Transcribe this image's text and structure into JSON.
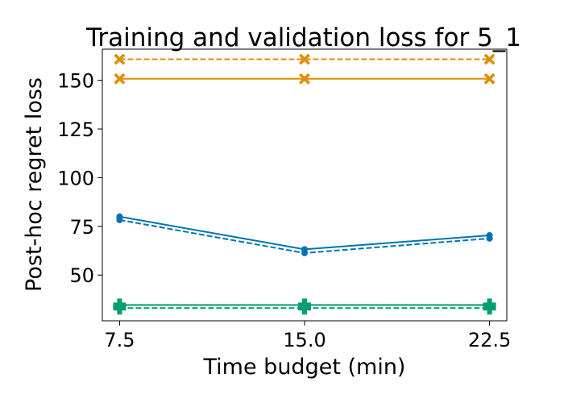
{
  "chart_data": {
    "type": "line",
    "title": "Training and validation loss for 5_1",
    "xlabel": "Time budget (min)",
    "ylabel": "Post-hoc regret loss",
    "x": [
      7.5,
      15.0,
      22.5
    ],
    "xticks": [
      7.5,
      15.0,
      22.5
    ],
    "xtick_labels": [
      "7.5",
      "15.0",
      "22.5"
    ],
    "yticks": [
      50,
      75,
      100,
      125,
      150
    ],
    "ytick_labels": [
      "50",
      "75",
      "100",
      "125",
      "150"
    ],
    "xlim": [
      6.8,
      23.2
    ],
    "ylim": [
      26.5,
      166
    ],
    "grid": false,
    "series": [
      {
        "values": [
          150.8,
          150.8,
          150.8
        ],
        "color": "#DE8F05",
        "dash": false,
        "marker": "x-filled"
      },
      {
        "values": [
          160.8,
          160.8,
          160.8
        ],
        "color": "#DE8F05",
        "dash": true,
        "marker": "x-filled"
      },
      {
        "values": [
          80.0,
          63.2,
          70.4
        ],
        "color": "#0173B2",
        "dash": false,
        "marker": "circle"
      },
      {
        "values": [
          78.3,
          61.3,
          68.8
        ],
        "color": "#0173B2",
        "dash": true,
        "marker": "circle"
      },
      {
        "values": [
          34.6,
          34.6,
          34.6
        ],
        "color": "#029E73",
        "dash": false,
        "marker": "plus-filled"
      },
      {
        "values": [
          33.0,
          33.0,
          33.0
        ],
        "color": "#029E73",
        "dash": true,
        "marker": "plus-filled"
      }
    ]
  }
}
